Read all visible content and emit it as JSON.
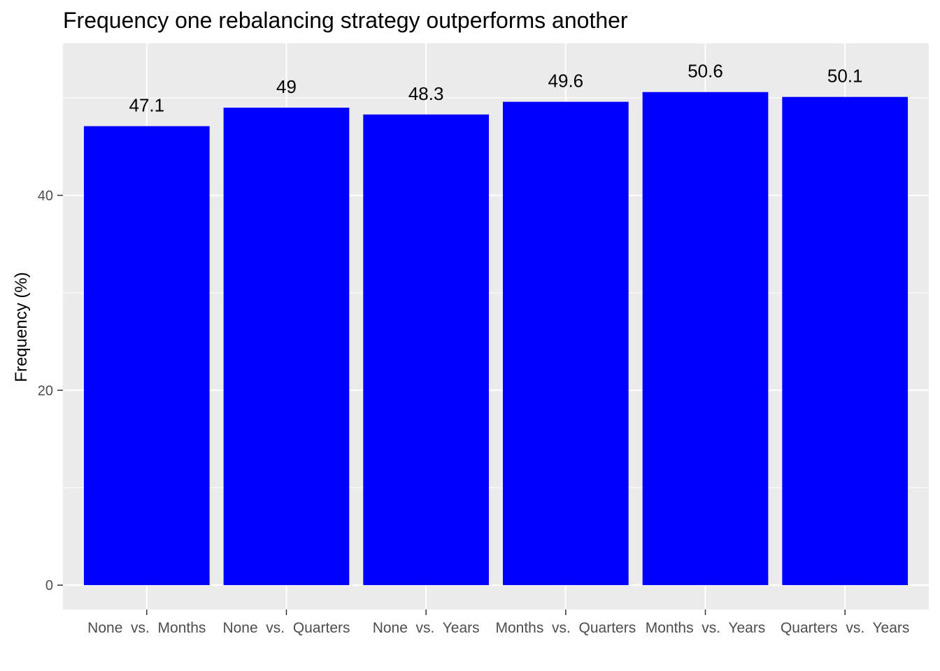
{
  "chart_data": {
    "type": "bar",
    "title": "Frequency one rebalancing strategy outperforms another",
    "xlabel": "",
    "ylabel": "Frequency (%)",
    "categories": [
      "None  vs.  Months",
      "None  vs.  Quarters",
      "None  vs.  Years",
      "Months  vs.  Quarters",
      "Months  vs.  Years",
      "Quarters  vs.  Years"
    ],
    "values": [
      47.1,
      49,
      48.3,
      49.6,
      50.6,
      50.1
    ],
    "data_labels": [
      "47.1",
      "49",
      "48.3",
      "49.6",
      "50.6",
      "50.1"
    ],
    "ylim": [
      -2.5,
      55.6
    ],
    "yticks": [
      0,
      20,
      40
    ],
    "ytick_labels": [
      "0",
      "20",
      "40"
    ],
    "bar_color": "#0000ff",
    "panel_background": "#ebebeb",
    "grid_color": "#ffffff",
    "grid": true,
    "legend": "none"
  }
}
